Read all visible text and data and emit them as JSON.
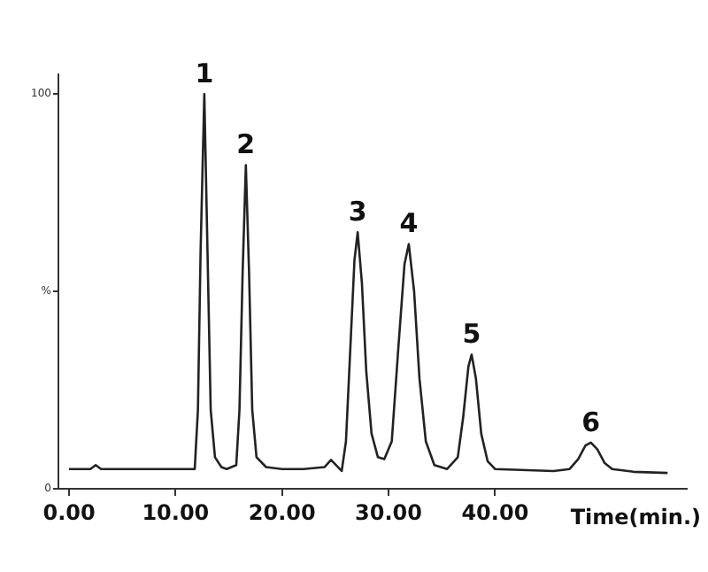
{
  "chart_data": {
    "type": "line",
    "xlabel": "Time(min.)",
    "x": [
      0,
      2.0,
      2.5,
      3.0,
      11.5,
      11.8,
      12.1,
      12.35,
      12.7,
      13.0,
      13.3,
      13.7,
      14.3,
      14.8,
      15.7,
      16.0,
      16.3,
      16.6,
      16.9,
      17.2,
      17.6,
      18.5,
      20,
      22,
      24,
      24.6,
      25.6,
      26.0,
      26.4,
      26.8,
      27.1,
      27.5,
      27.9,
      28.4,
      29.0,
      29.6,
      30.3,
      30.9,
      31.5,
      31.9,
      32.4,
      32.9,
      33.5,
      34.3,
      35.5,
      36.5,
      37.0,
      37.5,
      37.8,
      38.2,
      38.7,
      39.3,
      40,
      45.5,
      47.0,
      47.8,
      48.5,
      49.0,
      49.6,
      50.3,
      51.0,
      53,
      56.2
    ],
    "series": [
      {
        "color": "#222222",
        "values": [
          5,
          5,
          6,
          5,
          5,
          5,
          20,
          60,
          100,
          60,
          20,
          8,
          5.5,
          5,
          6,
          20,
          55,
          82,
          55,
          20,
          8,
          5.5,
          5,
          5,
          5.5,
          7.3,
          4.5,
          12,
          35,
          58,
          65,
          52,
          30,
          14,
          8,
          7.5,
          12,
          35,
          57,
          62,
          50,
          28,
          12,
          6,
          5,
          8,
          18,
          31,
          34,
          28,
          14,
          7,
          5,
          4.5,
          5,
          7.5,
          11,
          11.7,
          10,
          6.5,
          5,
          4.3,
          4
        ]
      }
    ],
    "xlim": [
      -1,
      58
    ],
    "xticks": [
      {
        "value": 0,
        "label": "0.00"
      },
      {
        "value": 10,
        "label": "10.00"
      },
      {
        "value": 20,
        "label": "20.00"
      },
      {
        "value": 30,
        "label": "30.00"
      },
      {
        "value": 40,
        "label": "40.00"
      }
    ],
    "ylim": [
      0,
      105
    ],
    "yticks": [
      0,
      {
        "value": 50,
        "label": "%"
      },
      100
    ],
    "grid": false,
    "legend": false,
    "marker": "none",
    "line_style": "solid",
    "annotations": [
      {
        "text": "1",
        "x": 12.7,
        "y": 100
      },
      {
        "text": "2",
        "x": 16.6,
        "y": 82
      },
      {
        "text": "3",
        "x": 27.1,
        "y": 65
      },
      {
        "text": "4",
        "x": 31.9,
        "y": 62
      },
      {
        "text": "5",
        "x": 37.8,
        "y": 34
      },
      {
        "text": "6",
        "x": 49.0,
        "y": 11.7
      }
    ]
  }
}
